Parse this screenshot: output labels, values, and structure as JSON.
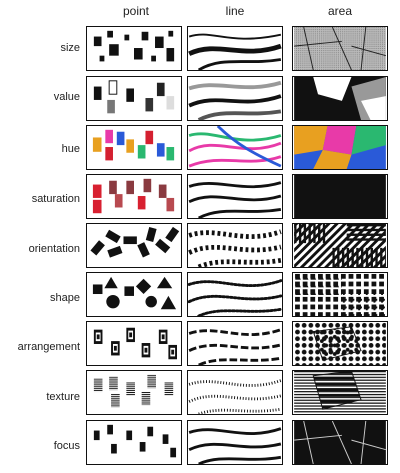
{
  "columns": [
    "point",
    "line",
    "area"
  ],
  "rows": [
    "size",
    "value",
    "hue",
    "saturation",
    "orientation",
    "shape",
    "arrangement",
    "texture",
    "focus"
  ],
  "colors": {
    "black": "#111111",
    "gray": "#888888",
    "hue_orange": "#e8a020",
    "hue_red": "#d42030",
    "hue_blue": "#2a5ad8",
    "hue_green": "#2ab870",
    "hue_magenta": "#e83aa8",
    "sat_dark": "#8a3a40",
    "sat_mid": "#b84a50",
    "sat_red": "#d82030"
  }
}
